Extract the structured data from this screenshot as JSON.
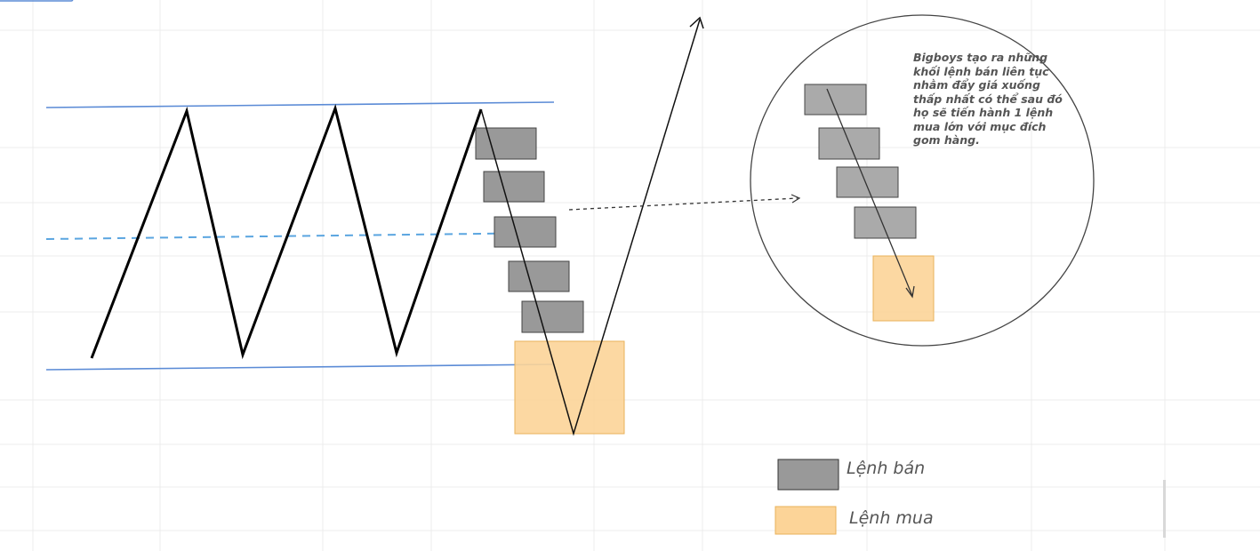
{
  "note": {
    "text": "Bigboys tạo ra những khối lệnh bán liên tục nhằm đẩy giá xuống thấp nhất có thể sau đó họ sẽ tiến hành 1 lệnh mua lớn với mục đích gom hàng."
  },
  "legend": [
    {
      "label": "Lệnh bán",
      "color": "#999999"
    },
    {
      "label": "Lệnh mua",
      "color": "#fcd498"
    }
  ],
  "colors": {
    "sell_block": "#999999",
    "buy_block": "#fcd498",
    "range_line": "#5b8bd6",
    "mid_line": "#5aa5e0",
    "price_path": "#000000"
  }
}
